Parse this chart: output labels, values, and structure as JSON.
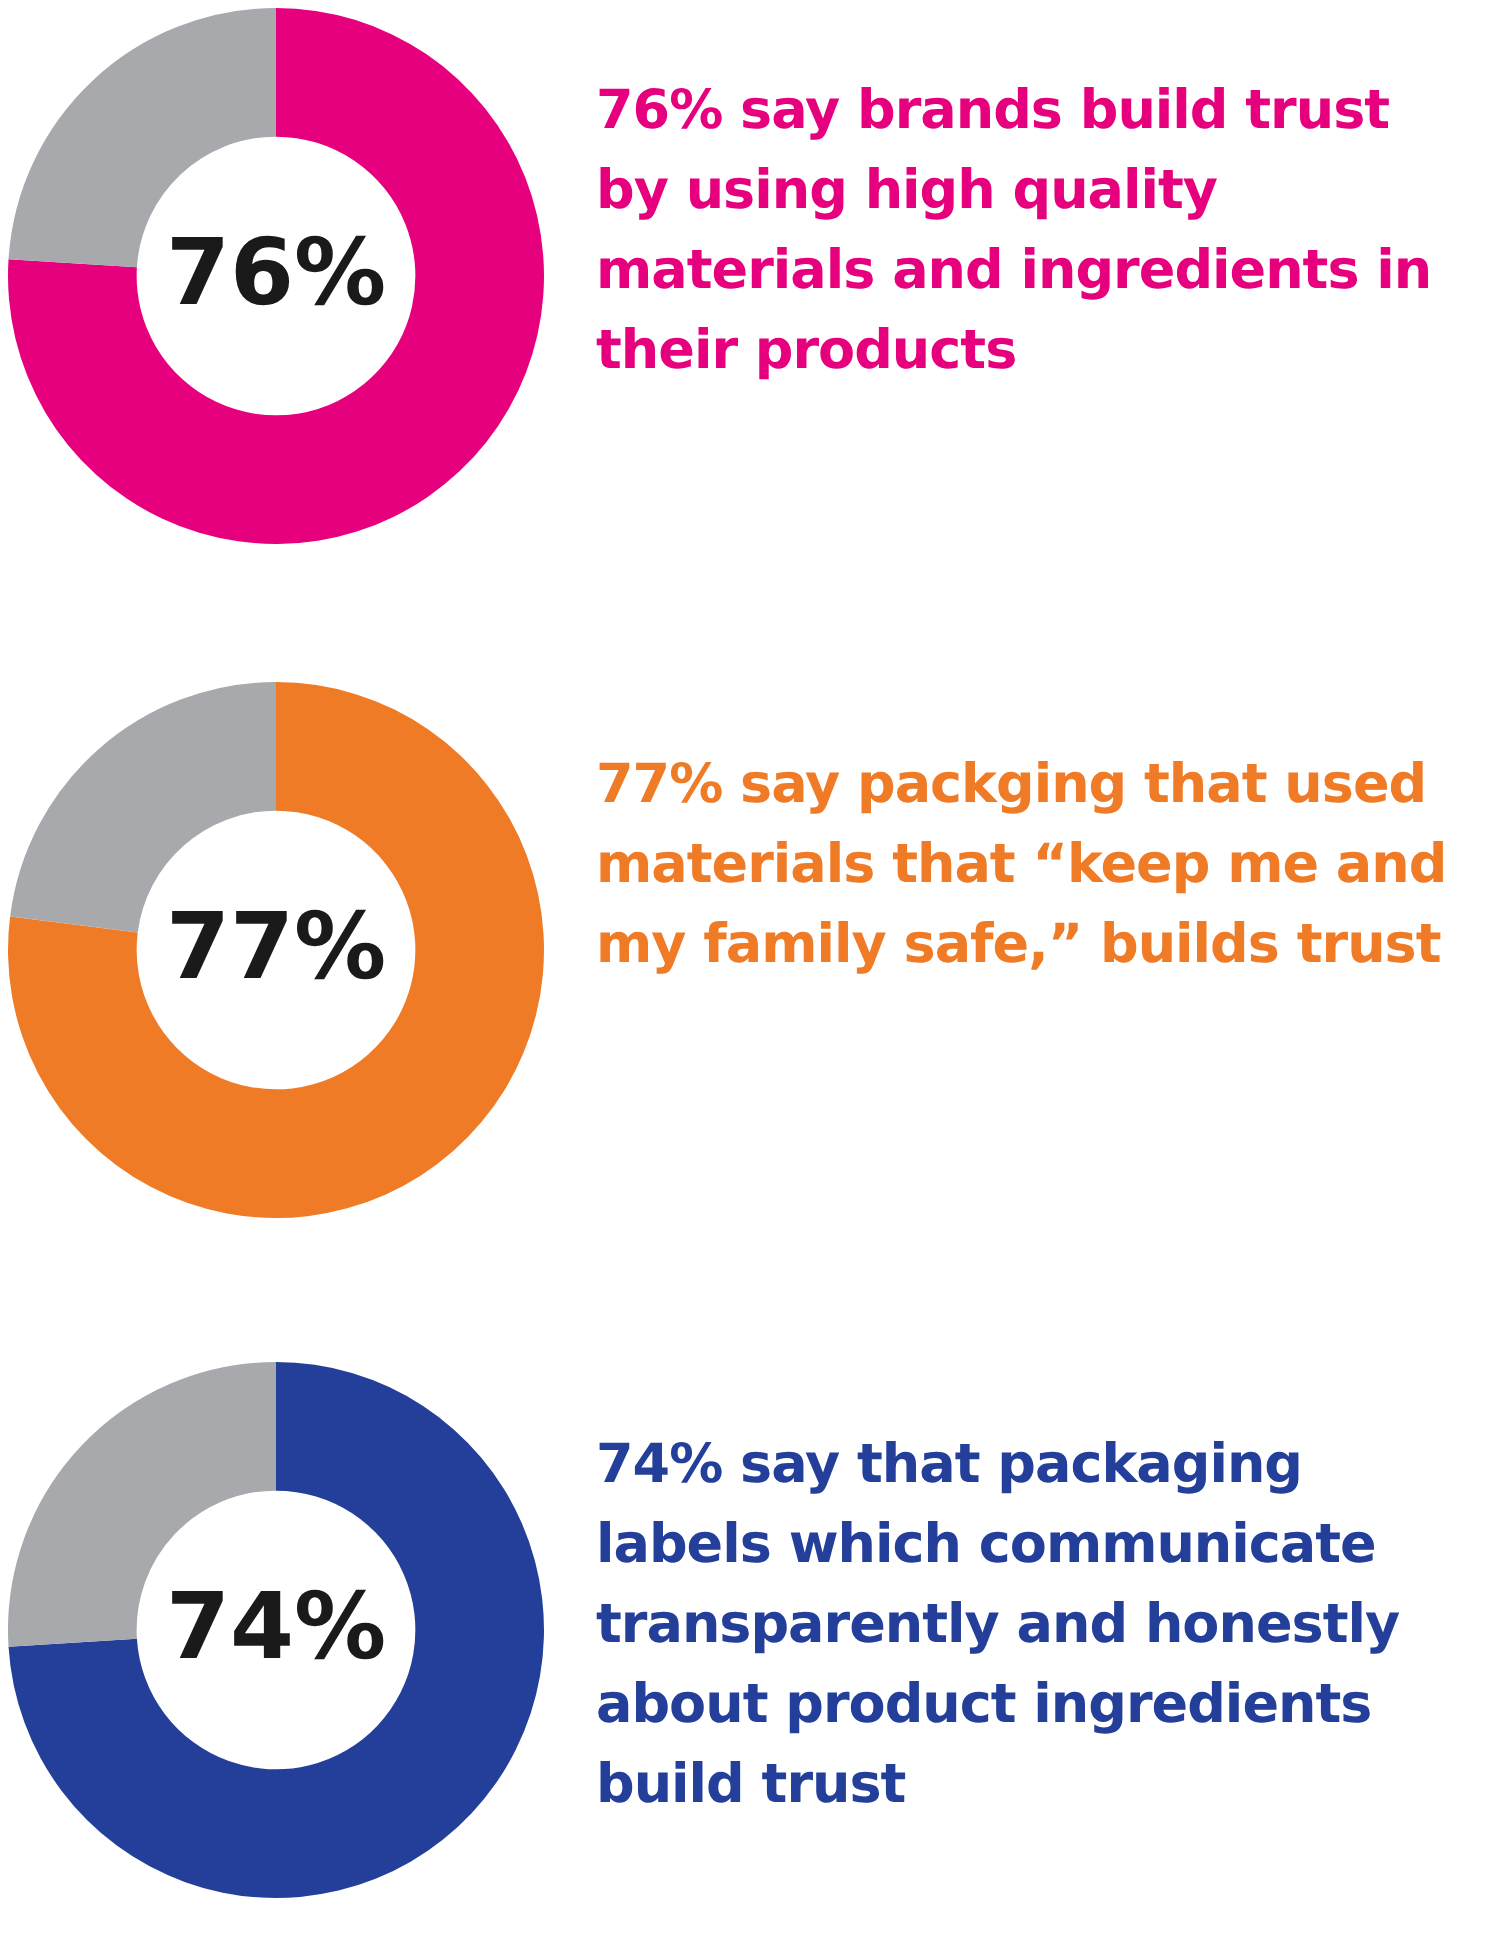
{
  "chart_data": [
    {
      "type": "donut",
      "categories": [
        null,
        null
      ],
      "values": [
        76,
        24
      ],
      "colors": [
        "#e6007e",
        "#a7a9ac"
      ],
      "value_labels": [
        "76%",
        null
      ],
      "annotations": [
        "76% say brands build trust by using high quality materials and ingredients in their products"
      ]
    },
    {
      "type": "donut",
      "categories": [
        null,
        null
      ],
      "values": [
        77,
        23
      ],
      "colors": [
        "#f07b27",
        "#a7a9ac"
      ],
      "value_labels": [
        "77%",
        null
      ],
      "annotations": [
        "77% say packging that used materials that “keep me and my family safe,” builds trust"
      ]
    },
    {
      "type": "donut",
      "categories": [
        null,
        null
      ],
      "values": [
        74,
        26
      ],
      "colors": [
        "#233f9a",
        "#a7a9ac"
      ],
      "value_labels": [
        "74%",
        null
      ],
      "annotations": [
        "74% say that packaging labels which communicate transparently and honestly about product ingredients build trust"
      ]
    }
  ]
}
